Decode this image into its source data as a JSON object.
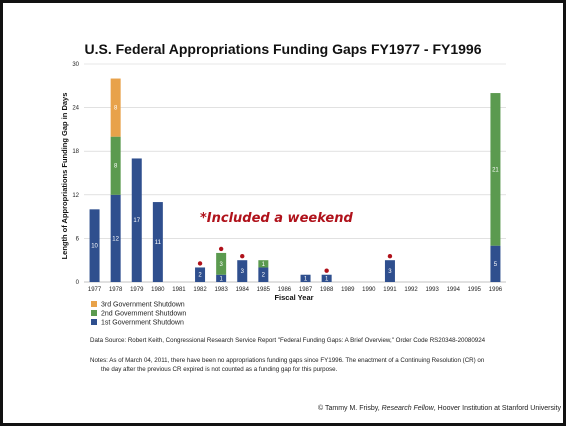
{
  "chart_data": {
    "type": "bar",
    "stacked": true,
    "title": "U.S. Federal Appropriations Funding Gaps FY1977 - FY1996",
    "xlabel": "Fiscal Year",
    "ylabel": "Length of Appropriations Funding Gap in Days",
    "ylim": [
      0,
      30
    ],
    "yticks": [
      "0",
      "6",
      "12",
      "18",
      "24",
      "30"
    ],
    "categories": [
      "1977",
      "1978",
      "1979",
      "1980",
      "1981",
      "1982",
      "1983",
      "1984",
      "1985",
      "1986",
      "1987",
      "1988",
      "1989",
      "1990",
      "1991",
      "1992",
      "1993",
      "1994",
      "1995",
      "1996"
    ],
    "series": [
      {
        "name": "1st Government Shutdown",
        "color": "#2f4f8e",
        "values": [
          10,
          12,
          17,
          11,
          0,
          2,
          1,
          3,
          2,
          0,
          1,
          1,
          0,
          0,
          3,
          0,
          0,
          0,
          0,
          5
        ],
        "labels": [
          "10",
          "12",
          "17",
          "11",
          "",
          "2",
          "1",
          "3",
          "2",
          "",
          "1",
          "1",
          "",
          "",
          "3",
          "",
          "",
          "",
          "",
          "5"
        ]
      },
      {
        "name": "2nd Government Shutdown",
        "color": "#5b9a4f",
        "values": [
          0,
          8,
          0,
          0,
          0,
          0,
          3,
          0,
          1,
          0,
          0,
          0,
          0,
          0,
          0,
          0,
          0,
          0,
          0,
          21
        ],
        "labels": [
          "",
          "8",
          "",
          "",
          "",
          "",
          "3",
          "",
          "1",
          "",
          "",
          "",
          "",
          "",
          "",
          "",
          "",
          "",
          "",
          "21"
        ]
      },
      {
        "name": "3rd Government Shutdown",
        "color": "#e8a24a",
        "values": [
          0,
          8,
          0,
          0,
          0,
          0,
          0,
          0,
          0,
          0,
          0,
          0,
          0,
          0,
          0,
          0,
          0,
          0,
          0,
          0
        ],
        "labels": [
          "",
          "8",
          "",
          "",
          "",
          "",
          "",
          "",
          "",
          "",
          "",
          "",
          "",
          "",
          "",
          "",
          "",
          "",
          "",
          ""
        ]
      }
    ],
    "weekend_marked": [
      "1982",
      "1983",
      "1984",
      "1988",
      "1991"
    ],
    "annotation": "*Included a weekend",
    "grid": true,
    "legend_position": "bottom-left"
  },
  "notes": {
    "source": "Data Source: Robert Keith, Congressional Research Service Report \"Federal Funding Gaps: A Brief Overview,\" Order Code RS20348-20080924",
    "note_line1": "Notes: As of March 04, 2011, there have been no appropriations funding gaps since FY1996. The enactment of a Continuing Resolution (CR) on",
    "note_line2": "the day after the previous CR expired is not counted as a funding gap for this purpose."
  },
  "credit": {
    "prefix": "© Tammy M. Frisby, ",
    "title": "Research Fellow",
    "suffix": ", Hoover Institution at Stanford University"
  },
  "colors": {
    "marker": "#b0121b"
  }
}
